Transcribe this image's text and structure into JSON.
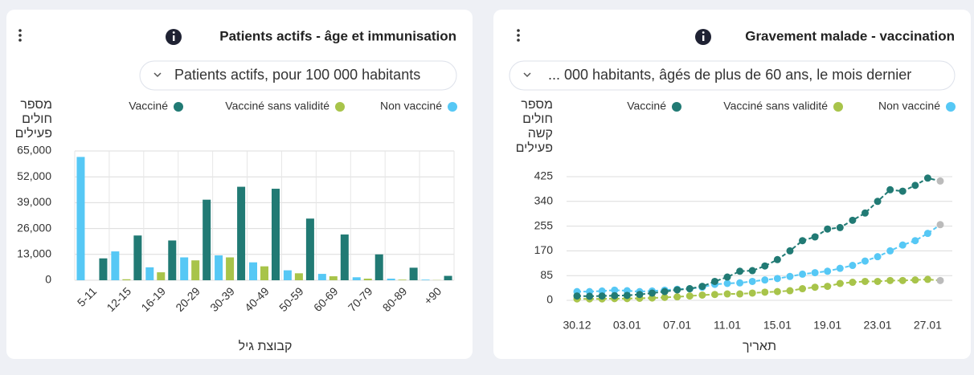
{
  "chart_data": [
    {
      "type": "bar",
      "title": "Patients actifs - âge et immunisation",
      "dropdown": "Patients actifs, pour 100 000 habitants",
      "ylabel": [
        "מספר",
        "חולים",
        "פעילים"
      ],
      "xlabel": "קבוצת גיל",
      "categories": [
        "5-11",
        "12-15",
        "16-19",
        "20-29",
        "30-39",
        "40-49",
        "50-59",
        "60-69",
        "70-79",
        "80-89",
        "+90"
      ],
      "series": [
        {
          "name": "Non vacciné",
          "color": "#56c8f5",
          "values": [
            62000,
            14500,
            6500,
            11500,
            12500,
            9000,
            5000,
            3200,
            1500,
            800,
            300
          ]
        },
        {
          "name": "Vacciné sans validité",
          "color": "#a8c44a",
          "values": [
            0,
            500,
            4000,
            10000,
            11500,
            7000,
            3500,
            2000,
            800,
            300,
            100
          ]
        },
        {
          "name": "Vacciné",
          "color": "#217a74",
          "values": [
            11000,
            22500,
            20000,
            40500,
            47000,
            46000,
            31000,
            23000,
            13000,
            6300,
            2200
          ]
        }
      ],
      "ylim": [
        0,
        65000
      ],
      "yticks": [
        0,
        {
          "value": 13000,
          "label": "13,000"
        },
        {
          "value": 26000,
          "label": "26,000"
        },
        {
          "value": 39000,
          "label": "39,000"
        },
        {
          "value": 52000,
          "label": "52,000"
        },
        {
          "value": 65000,
          "label": "65,000"
        }
      ],
      "grid": true
    },
    {
      "type": "line",
      "title": "Gravement malade - vaccination",
      "dropdown": "... 000 habitants, âgés de plus de 60 ans, le mois dernier",
      "ylabel": [
        "מספר",
        "חולים",
        "קשה",
        "פעילים"
      ],
      "xlabel": "תאריך",
      "categories": [
        "30.12",
        null,
        null,
        null,
        "03.01",
        null,
        null,
        null,
        "07.01",
        null,
        null,
        null,
        "11.01",
        null,
        null,
        null,
        "15.01",
        null,
        null,
        null,
        "19.01",
        null,
        null,
        null,
        "23.01",
        null,
        null,
        null,
        "27.01",
        null
      ],
      "series": [
        {
          "name": "Non vacciné",
          "color": "#56c8f5",
          "values": [
            30,
            30,
            32,
            35,
            33,
            30,
            32,
            35,
            38,
            40,
            45,
            55,
            58,
            60,
            65,
            70,
            75,
            82,
            90,
            95,
            100,
            110,
            120,
            135,
            150,
            170,
            190,
            205,
            230,
            260
          ]
        },
        {
          "name": "Vacciné sans validité",
          "color": "#a8c44a",
          "values": [
            5,
            5,
            5,
            6,
            6,
            7,
            8,
            10,
            12,
            15,
            18,
            20,
            22,
            22,
            25,
            28,
            30,
            33,
            40,
            45,
            48,
            58,
            62,
            65,
            65,
            68,
            68,
            70,
            72,
            68
          ]
        },
        {
          "name": "Vacciné",
          "color": "#217a74",
          "values": [
            15,
            14,
            15,
            16,
            17,
            20,
            25,
            30,
            36,
            40,
            48,
            65,
            80,
            100,
            102,
            118,
            140,
            170,
            205,
            218,
            245,
            250,
            275,
            300,
            340,
            380,
            375,
            395,
            420,
            410
          ]
        }
      ],
      "partial_color": "#bbbbbb",
      "ylim": [
        0,
        425
      ],
      "yticks": [
        0,
        85,
        170,
        255,
        340,
        425
      ],
      "grid": true
    }
  ]
}
